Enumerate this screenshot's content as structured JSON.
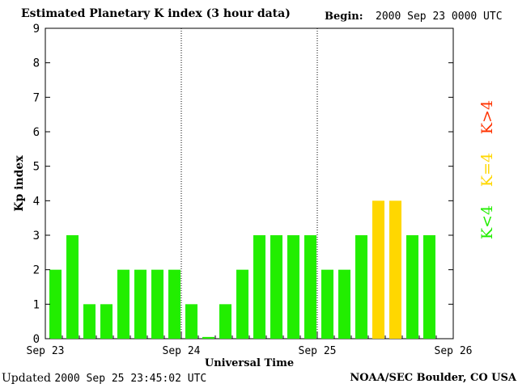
{
  "header": {
    "title": "Estimated Planetary K index (3 hour data)",
    "begin_label": "Begin:",
    "begin_value": "2000 Sep 23 0000 UTC"
  },
  "footer": {
    "updated_label": "Updated",
    "updated_value": "2000 Sep 25 23:45:02 UTC",
    "credit": "NOAA/SEC Boulder, CO USA"
  },
  "colors": {
    "low": "#22ee00",
    "moderate": "#ffd700",
    "high": "#ff3300"
  },
  "legend_items": [
    {
      "label": "K<4",
      "color": "#22ee00"
    },
    {
      "label": "K=4",
      "color": "#ffd700"
    },
    {
      "label": "K>4",
      "color": "#ff3300"
    }
  ],
  "chart_data": {
    "type": "bar",
    "title": "Estimated Planetary K index (3 hour data)",
    "xlabel": "Universal Time",
    "ylabel": "Kp index",
    "ylim": [
      0,
      9
    ],
    "yticks": [
      0,
      1,
      2,
      3,
      4,
      5,
      6,
      7,
      8,
      9
    ],
    "day_labels": [
      "Sep 23",
      "Sep 24",
      "Sep 25",
      "Sep 26"
    ],
    "interval_hours": 3,
    "values": [
      2,
      3,
      1,
      1,
      2,
      2,
      2,
      2,
      1,
      0.05,
      1,
      2,
      3,
      3,
      3,
      3,
      2,
      2,
      3,
      4,
      4,
      3,
      3
    ],
    "grid": false,
    "legend": "right"
  }
}
